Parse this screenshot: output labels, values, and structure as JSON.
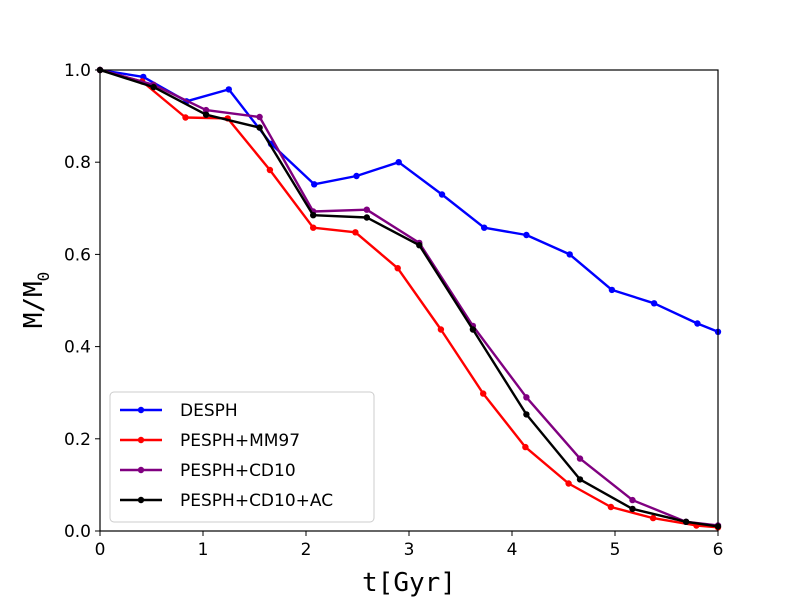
{
  "chart_data": {
    "type": "line",
    "title": "",
    "xlabel": "t[Gyr]",
    "ylabel": "M/M",
    "ylabel_subscript": "0",
    "xlim": [
      0,
      6
    ],
    "ylim": [
      0,
      1.0
    ],
    "xticks": [
      "0",
      "1",
      "2",
      "3",
      "4",
      "5",
      "6"
    ],
    "yticks": [
      "0.0",
      "0.2",
      "0.4",
      "0.6",
      "0.8",
      "1.0"
    ],
    "grid": false,
    "legend_position": "bottom-left",
    "series": [
      {
        "name": "DESPH",
        "color": "#0000ff",
        "x": [
          0,
          0.42,
          0.84,
          1.25,
          1.66,
          2.08,
          2.49,
          2.9,
          3.32,
          3.73,
          4.14,
          4.56,
          4.97,
          5.38,
          5.8,
          6.0
        ],
        "y": [
          1.0,
          0.985,
          0.932,
          0.958,
          0.84,
          0.752,
          0.77,
          0.8,
          0.73,
          0.658,
          0.642,
          0.6,
          0.523,
          0.494,
          0.45,
          0.432
        ]
      },
      {
        "name": "PESPH+MM97",
        "color": "#ff0000",
        "x": [
          0,
          0.41,
          0.83,
          1.24,
          1.65,
          2.07,
          2.48,
          2.89,
          3.31,
          3.72,
          4.13,
          4.55,
          4.96,
          5.37,
          5.79,
          6.0
        ],
        "y": [
          1.0,
          0.975,
          0.897,
          0.895,
          0.783,
          0.658,
          0.648,
          0.57,
          0.437,
          0.298,
          0.182,
          0.103,
          0.052,
          0.028,
          0.012,
          0.008
        ]
      },
      {
        "name": "PESPH+CD10",
        "color": "#800080",
        "x": [
          0,
          0.52,
          1.03,
          1.55,
          2.07,
          2.59,
          3.1,
          3.62,
          4.14,
          4.66,
          5.17,
          5.69,
          6.0
        ],
        "y": [
          1.0,
          0.968,
          0.913,
          0.898,
          0.693,
          0.697,
          0.625,
          0.445,
          0.29,
          0.157,
          0.067,
          0.02,
          0.012
        ]
      },
      {
        "name": "PESPH+CD10+AC",
        "color": "#000000",
        "x": [
          0,
          0.52,
          1.03,
          1.55,
          2.07,
          2.59,
          3.1,
          3.62,
          4.14,
          4.66,
          5.17,
          5.69,
          6.0
        ],
        "y": [
          1.0,
          0.963,
          0.903,
          0.875,
          0.685,
          0.68,
          0.62,
          0.437,
          0.253,
          0.112,
          0.048,
          0.02,
          0.01
        ]
      }
    ]
  }
}
